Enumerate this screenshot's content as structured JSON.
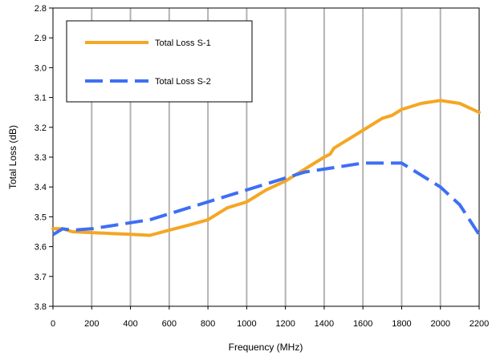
{
  "chart_data": {
    "type": "line",
    "title": "",
    "xlabel": "Frequency (MHz)",
    "ylabel": "Total Loss (dB)",
    "xlim": [
      0,
      2200
    ],
    "ylim": [
      2.8,
      3.8
    ],
    "y_inverted": true,
    "x_ticks": [
      "0",
      "200",
      "400",
      "600",
      "800",
      "1000",
      "1200",
      "1400",
      "1600",
      "1800",
      "2000",
      "2200"
    ],
    "y_ticks": [
      "2.8",
      "2.9",
      "3.0",
      "3.1",
      "3.2",
      "3.3",
      "3.4",
      "3.5",
      "3.6",
      "3.7",
      "3.8"
    ],
    "grid": "vertical",
    "legend_position": "top-left",
    "series": [
      {
        "name": "Total Loss S-1",
        "color": "#f5a623",
        "style": "solid",
        "x": [
          0,
          50,
          100,
          200,
          300,
          400,
          500,
          600,
          700,
          800,
          900,
          1000,
          1100,
          1200,
          1300,
          1400,
          1430,
          1450,
          1500,
          1600,
          1700,
          1750,
          1800,
          1900,
          2000,
          2100,
          2200
        ],
        "y": [
          3.54,
          3.54,
          3.55,
          3.553,
          3.556,
          3.559,
          3.562,
          3.545,
          3.528,
          3.51,
          3.47,
          3.45,
          3.41,
          3.38,
          3.34,
          3.3,
          3.29,
          3.27,
          3.25,
          3.21,
          3.17,
          3.16,
          3.14,
          3.12,
          3.11,
          3.12,
          3.15
        ]
      },
      {
        "name": "Total Loss S-2",
        "color": "#3d6ff5",
        "style": "dashed",
        "x": [
          0,
          50,
          100,
          200,
          300,
          400,
          500,
          600,
          700,
          800,
          900,
          1000,
          1100,
          1200,
          1300,
          1400,
          1500,
          1600,
          1700,
          1800,
          1900,
          2000,
          2100,
          2200
        ],
        "y": [
          3.56,
          3.54,
          3.545,
          3.54,
          3.53,
          3.52,
          3.51,
          3.49,
          3.47,
          3.45,
          3.43,
          3.41,
          3.39,
          3.37,
          3.35,
          3.34,
          3.33,
          3.32,
          3.32,
          3.32,
          3.36,
          3.4,
          3.46,
          3.56
        ]
      }
    ]
  }
}
